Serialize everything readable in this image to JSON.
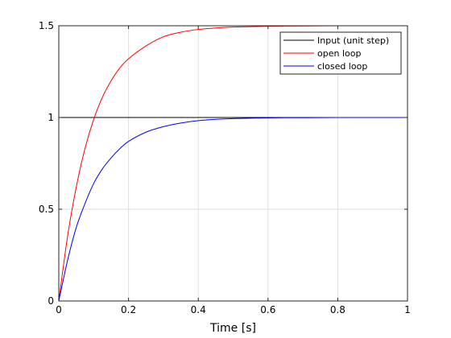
{
  "chart_data": {
    "type": "line",
    "title": "",
    "xlabel": "Time [s]",
    "ylabel": "",
    "xlim": [
      0,
      1
    ],
    "ylim": [
      0,
      1.5
    ],
    "grid": true,
    "legend_position": "top-right",
    "x_ticks": [
      0,
      0.2,
      0.4,
      0.6,
      0.8,
      1
    ],
    "x_tick_labels": [
      "0",
      "0.2",
      "0.4",
      "0.6",
      "0.8",
      "1"
    ],
    "y_ticks": [
      0,
      0.5,
      1,
      1.5
    ],
    "y_tick_labels": [
      "0",
      "0.5",
      "1",
      "1.5"
    ],
    "x": [
      0,
      0.025,
      0.05,
      0.075,
      0.1,
      0.125,
      0.15,
      0.175,
      0.2,
      0.25,
      0.3,
      0.35,
      0.4,
      0.45,
      0.5,
      0.6,
      0.7,
      0.8,
      0.9,
      1.0
    ],
    "series": [
      {
        "name": "Input (unit step)",
        "color": "#000000",
        "values": [
          1,
          1,
          1,
          1,
          1,
          1,
          1,
          1,
          1,
          1,
          1,
          1,
          1,
          1,
          1,
          1,
          1,
          1,
          1,
          1
        ]
      },
      {
        "name": "open loop",
        "color": "#ff0000",
        "values": [
          0,
          0.35,
          0.62,
          0.83,
          0.99,
          1.11,
          1.2,
          1.27,
          1.32,
          1.39,
          1.44,
          1.465,
          1.48,
          1.488,
          1.493,
          1.497,
          1.499,
          1.5,
          1.5,
          1.5
        ]
      },
      {
        "name": "closed loop",
        "color": "#0000ff",
        "values": [
          0,
          0.22,
          0.4,
          0.53,
          0.64,
          0.72,
          0.78,
          0.83,
          0.87,
          0.92,
          0.95,
          0.97,
          0.983,
          0.99,
          0.994,
          0.998,
          0.999,
          1.0,
          1.0,
          1.0
        ]
      }
    ]
  }
}
